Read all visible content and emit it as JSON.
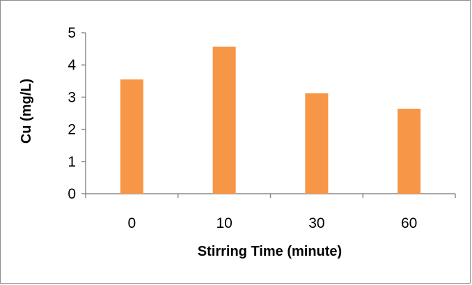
{
  "chart_data": {
    "type": "bar",
    "categories": [
      "0",
      "10",
      "30",
      "60"
    ],
    "values": [
      3.55,
      4.57,
      3.12,
      2.64
    ],
    "xlabel": "Stirring Time (minute)",
    "ylabel": "Cu (mg/L)",
    "ylim": [
      0,
      5
    ],
    "yticks": [
      0,
      1,
      2,
      3,
      4,
      5
    ],
    "grid": false,
    "legend": "none",
    "bar_color": "#f79646",
    "axis_color": "#8c8c8c"
  }
}
